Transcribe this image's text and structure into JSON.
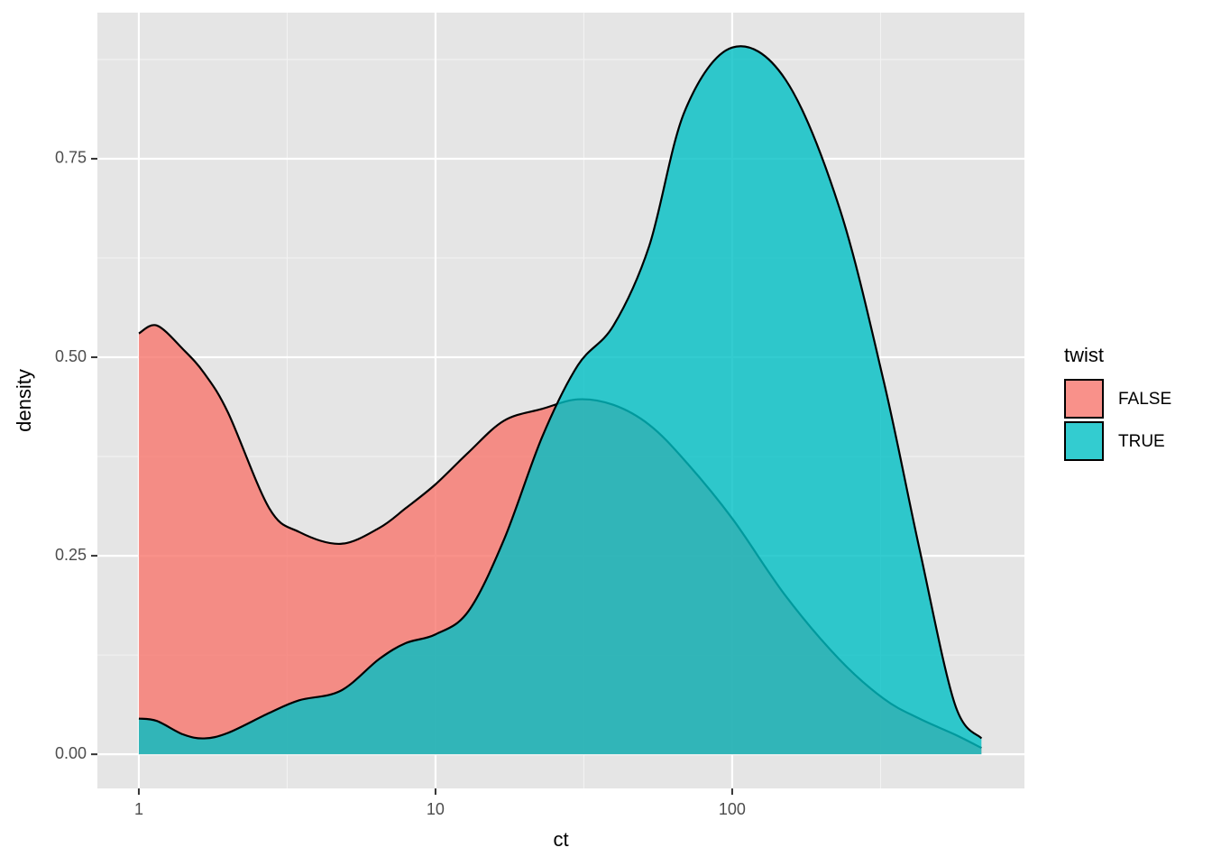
{
  "chart_data": {
    "type": "density",
    "x_label": "ct",
    "y_label": "density",
    "x_log": true,
    "x": [
      1,
      1.15,
      1.41,
      1.66,
      2,
      2.75,
      3.47,
      4.79,
      6.46,
      7.94,
      10,
      12.9,
      17,
      22.9,
      30.2,
      39.8,
      52.5,
      69.2,
      100,
      151,
      229,
      324,
      427,
      562,
      692
    ],
    "series": [
      {
        "name": "FALSE",
        "color": "#F8766D",
        "values": [
          0.53,
          0.54,
          0.51,
          0.48,
          0.43,
          0.31,
          0.28,
          0.265,
          0.285,
          0.31,
          0.34,
          0.38,
          0.42,
          0.435,
          0.447,
          0.44,
          0.415,
          0.37,
          0.297,
          0.2,
          0.12,
          0.07,
          0.045,
          0.025,
          0.008
        ]
      },
      {
        "name": "TRUE",
        "color": "#00BFC4",
        "values": [
          0.045,
          0.042,
          0.025,
          0.02,
          0.027,
          0.052,
          0.068,
          0.08,
          0.12,
          0.14,
          0.151,
          0.18,
          0.27,
          0.4,
          0.49,
          0.54,
          0.64,
          0.81,
          0.89,
          0.85,
          0.69,
          0.47,
          0.26,
          0.064,
          0.02
        ]
      }
    ],
    "xlim": [
      0.725,
      966
    ],
    "ylim": [
      -0.043,
      0.934
    ],
    "xticks": [
      1,
      10,
      100
    ],
    "yticks": [
      {
        "value": 0,
        "label": "0.00"
      },
      {
        "value": 0.25,
        "label": "0.25"
      },
      {
        "value": 0.5,
        "label": "0.50"
      },
      {
        "value": 0.75,
        "label": "0.75"
      }
    ],
    "legend_title": "twist",
    "legend_position": "right",
    "grid": true,
    "fill_alpha": 0.8
  }
}
